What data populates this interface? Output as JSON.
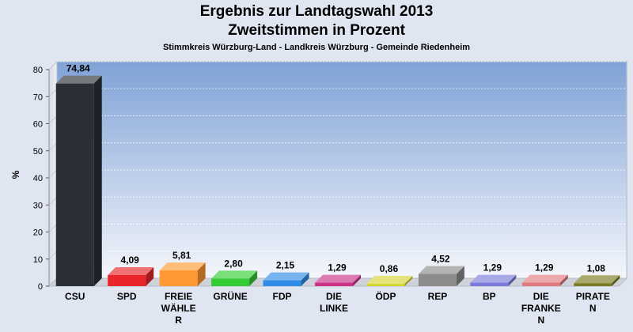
{
  "chart_data": {
    "type": "bar",
    "title": "Ergebnis zur Landtagswahl 2013",
    "subtitle_line": "Zweitstimmen in Prozent",
    "subtitle": "Stimmkreis Würzburg-Land - Landkreis Würzburg - Gemeinde Riedenheim",
    "ylabel": "%",
    "xlabel": "",
    "ylim": [
      0,
      80
    ],
    "yticks": [
      0,
      10,
      20,
      30,
      40,
      50,
      60,
      70,
      80
    ],
    "grid": true,
    "categories": [
      [
        "CSU"
      ],
      [
        "SPD"
      ],
      [
        "FREIE",
        "WÄHLE",
        "R"
      ],
      [
        "GRÜNE"
      ],
      [
        "FDP"
      ],
      [
        "DIE",
        "LINKE"
      ],
      [
        "ÖDP"
      ],
      [
        "REP"
      ],
      [
        "BP"
      ],
      [
        "DIE",
        "FRANKE",
        "N"
      ],
      [
        "PIRATE",
        "N"
      ]
    ],
    "values": [
      74.84,
      4.09,
      5.81,
      2.8,
      2.15,
      1.29,
      0.86,
      4.52,
      1.29,
      1.29,
      1.08
    ],
    "value_labels": [
      "74,84",
      "4,09",
      "5,81",
      "2,80",
      "2,15",
      "1,29",
      "0,86",
      "4,52",
      "1,29",
      "1,29",
      "1,08"
    ],
    "colors": [
      "#2b2f36",
      "#e8262b",
      "#ff9933",
      "#33cc33",
      "#2f8ce6",
      "#cc3388",
      "#d6d633",
      "#8c8c8c",
      "#7b7bdc",
      "#e07a80",
      "#7a7a20"
    ]
  }
}
